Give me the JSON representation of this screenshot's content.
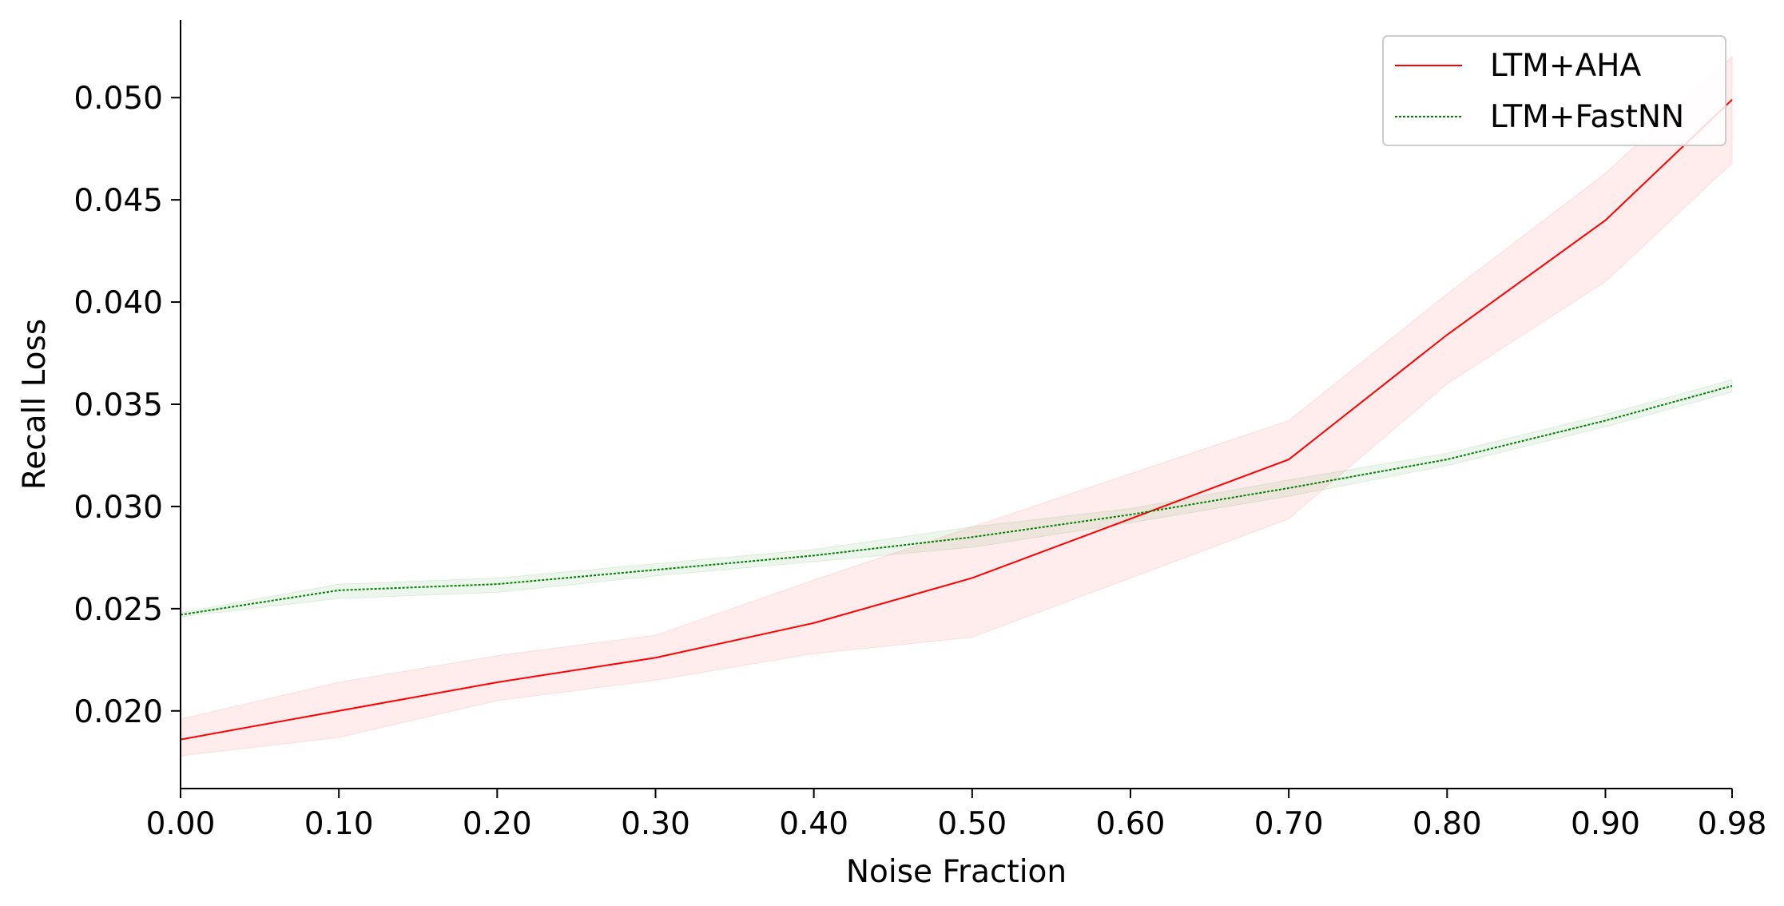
{
  "chart_data": {
    "type": "line",
    "xlabel": "Noise Fraction",
    "ylabel": "Recall Loss",
    "x": [
      0.0,
      0.1,
      0.2,
      0.3,
      0.4,
      0.5,
      0.6,
      0.7,
      0.8,
      0.9,
      0.98
    ],
    "x_tick_labels": [
      "0.00",
      "0.10",
      "0.20",
      "0.30",
      "0.40",
      "0.50",
      "0.60",
      "0.70",
      "0.80",
      "0.90",
      "0.98"
    ],
    "y_ticks": [
      0.02,
      0.025,
      0.03,
      0.035,
      0.04,
      0.045,
      0.05
    ],
    "y_tick_labels": [
      "0.020",
      "0.025",
      "0.030",
      "0.035",
      "0.040",
      "0.045",
      "0.050"
    ],
    "xlim": [
      0.0,
      0.98
    ],
    "ylim": [
      0.0162,
      0.0538
    ],
    "grid": false,
    "legend_position": "top-right",
    "series": [
      {
        "name": "LTM+AHA",
        "color": "#ff0000",
        "line_style": "solid",
        "values": [
          0.0186,
          0.02,
          0.0214,
          0.0226,
          0.0243,
          0.0265,
          0.0294,
          0.0323,
          0.0384,
          0.044,
          0.0499
        ],
        "lower": [
          0.0178,
          0.0187,
          0.0205,
          0.0215,
          0.0228,
          0.0236,
          0.0265,
          0.0294,
          0.036,
          0.041,
          0.0468
        ],
        "upper": [
          0.0196,
          0.0214,
          0.0227,
          0.0237,
          0.0264,
          0.029,
          0.0316,
          0.0342,
          0.0404,
          0.0463,
          0.052
        ]
      },
      {
        "name": "LTM+FastNN",
        "color": "#008000",
        "line_style": "dotted",
        "values": [
          0.0247,
          0.0259,
          0.0262,
          0.0269,
          0.0276,
          0.0285,
          0.0296,
          0.0309,
          0.0323,
          0.0342,
          0.0359
        ],
        "lower": [
          0.0246,
          0.0255,
          0.0258,
          0.0266,
          0.0273,
          0.028,
          0.0292,
          0.0305,
          0.032,
          0.0339,
          0.0356
        ],
        "upper": [
          0.0248,
          0.0262,
          0.0265,
          0.0272,
          0.0279,
          0.029,
          0.0299,
          0.0313,
          0.0326,
          0.0345,
          0.0362
        ]
      }
    ]
  }
}
